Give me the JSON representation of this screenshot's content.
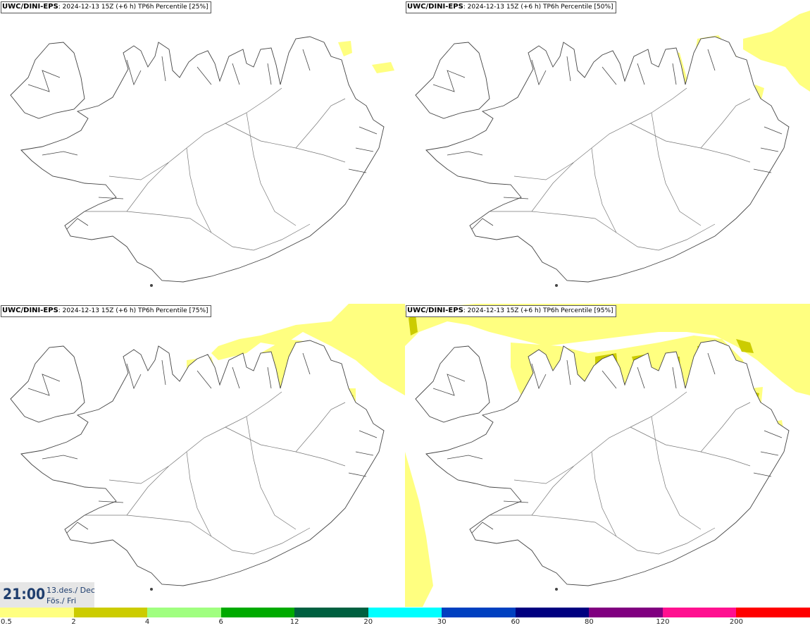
{
  "panels": [
    {
      "model": "UWC/DINI-EPS",
      "meta": "2024-12-13 15Z (+6 h)",
      "product": "TP6h Percentile [25%]"
    },
    {
      "model": "UWC/DINI-EPS",
      "meta": "2024-12-13 15Z (+6 h)",
      "product": "TP6h Percentile [50%]"
    },
    {
      "model": "UWC/DINI-EPS",
      "meta": "2024-12-13 15Z (+6 h)",
      "product": "TP6h Percentile [75%]"
    },
    {
      "model": "UWC/DINI-EPS",
      "meta": "2024-12-13 15Z (+6 h)",
      "product": "TP6h Percentile [95%]"
    }
  ],
  "valid_time": {
    "time": "21:00",
    "date": "13.des./ Dec",
    "weekday": "Fös./ Fri"
  },
  "legend": {
    "ticks": [
      "0.5",
      "2",
      "4",
      "6",
      "12",
      "20",
      "30",
      "60",
      "80",
      "120",
      "200"
    ],
    "colors": [
      "#ffff80",
      "#cccc00",
      "#a0ff80",
      "#00aa00",
      "#006040",
      "#00ffff",
      "#0040c0",
      "#000080",
      "#800080",
      "#ff1090",
      "#ff0000"
    ]
  },
  "colors": {
    "level1": "#ffff80",
    "level2": "#cccc00",
    "level3": "#a0ff80",
    "level4": "#00aa00",
    "coast": "#444444"
  }
}
